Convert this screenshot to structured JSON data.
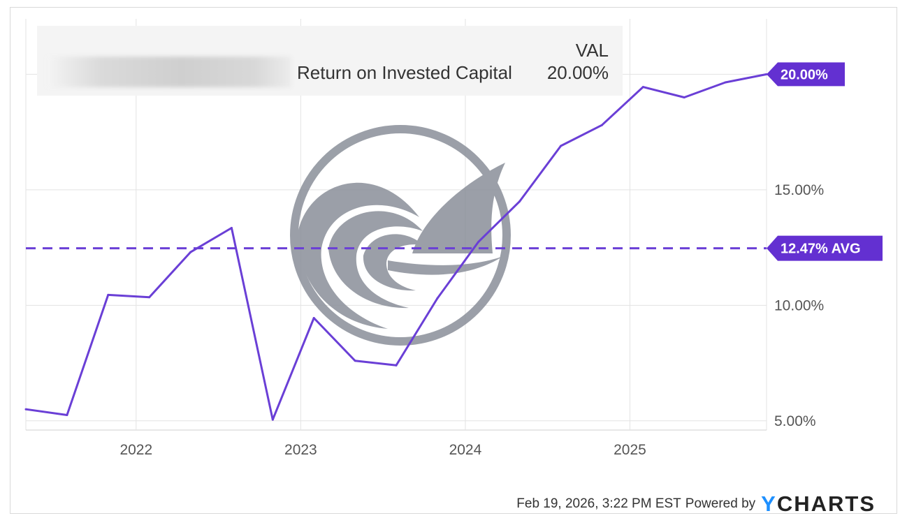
{
  "legend": {
    "column_header": "VAL",
    "series_name": "Return on Invested Capital",
    "series_value": "20.00%"
  },
  "footer": {
    "timestamp": "Feb 19, 2026, 3:22 PM EST",
    "powered_by": "Powered by",
    "brand_y": "Y",
    "brand_rest": "CHARTS"
  },
  "colors": {
    "series": "#6a3fd6",
    "label_bg": "#6330d1",
    "grid": "#e3e3e3",
    "axis_text": "#555555",
    "watermark": "#8a8f99"
  },
  "watermark": {
    "icon": "wave-shark-fin-logo"
  },
  "chart_data": {
    "type": "line",
    "title": "",
    "xlabel": "",
    "ylabel": "",
    "x_ticks": [
      {
        "label": "2022",
        "year": 2022.0
      },
      {
        "label": "2023",
        "year": 2023.0
      },
      {
        "label": "2024",
        "year": 2024.0
      },
      {
        "label": "2025",
        "year": 2025.0
      }
    ],
    "y_ticks": [
      {
        "label": "5.00%",
        "value": 5
      },
      {
        "label": "10.00%",
        "value": 10
      },
      {
        "label": "15.00%",
        "value": 15
      }
    ],
    "xlim": [
      2021.33,
      2025.83
    ],
    "ylim": [
      4.6,
      22.4
    ],
    "series": [
      {
        "name": "Return on Invested Capital",
        "points": [
          [
            2021.33,
            5.5
          ],
          [
            2021.58,
            5.25
          ],
          [
            2021.83,
            10.45
          ],
          [
            2022.08,
            10.35
          ],
          [
            2022.33,
            12.3
          ],
          [
            2022.58,
            13.35
          ],
          [
            2022.83,
            5.05
          ],
          [
            2023.08,
            9.45
          ],
          [
            2023.33,
            7.6
          ],
          [
            2023.58,
            7.4
          ],
          [
            2023.83,
            10.3
          ],
          [
            2024.08,
            12.75
          ],
          [
            2024.33,
            14.5
          ],
          [
            2024.58,
            16.9
          ],
          [
            2024.83,
            17.8
          ],
          [
            2025.08,
            19.45
          ],
          [
            2025.33,
            19.0
          ],
          [
            2025.58,
            19.65
          ],
          [
            2025.83,
            20.0
          ]
        ],
        "end_label": "20.00%"
      }
    ],
    "average": {
      "value": 12.47,
      "label": "12.47% AVG"
    },
    "grid": true,
    "legend_position": "top-left"
  }
}
